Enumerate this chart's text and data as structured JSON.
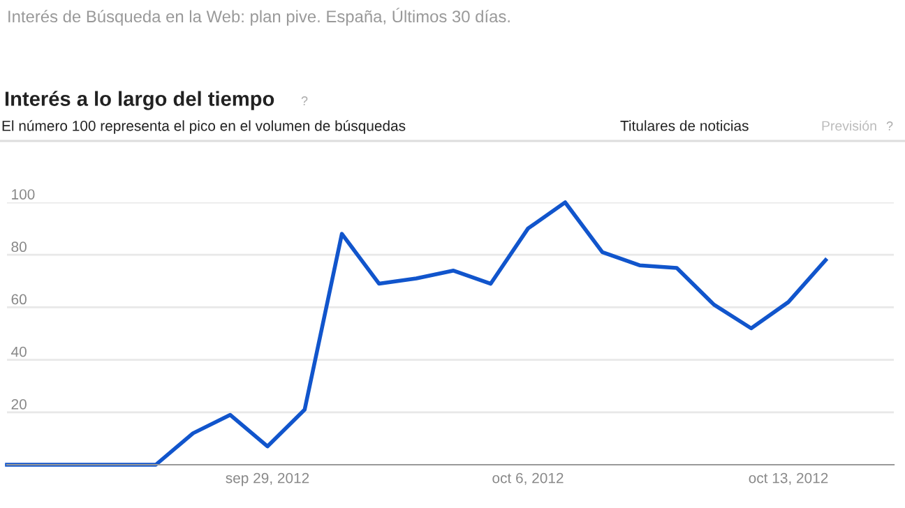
{
  "chart_data": {
    "type": "line",
    "title": "Interés de Búsqueda en la Web: plan pive. España, Últimos 30 días.",
    "subtitle": "Interés a lo largo del tiempo",
    "annotations": [
      "El número 100 representa el pico en el volumen de búsquedas",
      "Titulares de noticias",
      "Previsión",
      "?",
      "?"
    ],
    "x": [
      "2012-09-22",
      "2012-09-23",
      "2012-09-24",
      "2012-09-25",
      "2012-09-26",
      "2012-09-27",
      "2012-09-28",
      "2012-09-29",
      "2012-09-30",
      "2012-10-01",
      "2012-10-02",
      "2012-10-03",
      "2012-10-04",
      "2012-10-05",
      "2012-10-06",
      "2012-10-07",
      "2012-10-08",
      "2012-10-09",
      "2012-10-10",
      "2012-10-11",
      "2012-10-12",
      "2012-10-13",
      "2012-10-14"
    ],
    "series": [
      {
        "color": "#1155cc",
        "values": [
          0,
          0,
          0,
          0,
          0,
          12,
          19,
          7,
          21,
          88,
          69,
          71,
          74,
          69,
          90,
          100,
          81,
          76,
          75,
          61,
          52,
          62,
          78
        ]
      }
    ],
    "xlim": [
      "2012-09-22",
      "2012-10-15T20:00"
    ],
    "ylim": [
      0,
      100
    ],
    "yticks": [
      20,
      40,
      60,
      80,
      100
    ],
    "xticks": [
      {
        "value": "2012-09-29",
        "label": "sep 29, 2012"
      },
      {
        "value": "2012-10-06",
        "label": "oct 6, 2012"
      },
      {
        "value": "2012-10-13",
        "label": "oct 13, 2012"
      }
    ],
    "grid": "y",
    "legend": false,
    "marker": "none",
    "line_style": "solid"
  }
}
